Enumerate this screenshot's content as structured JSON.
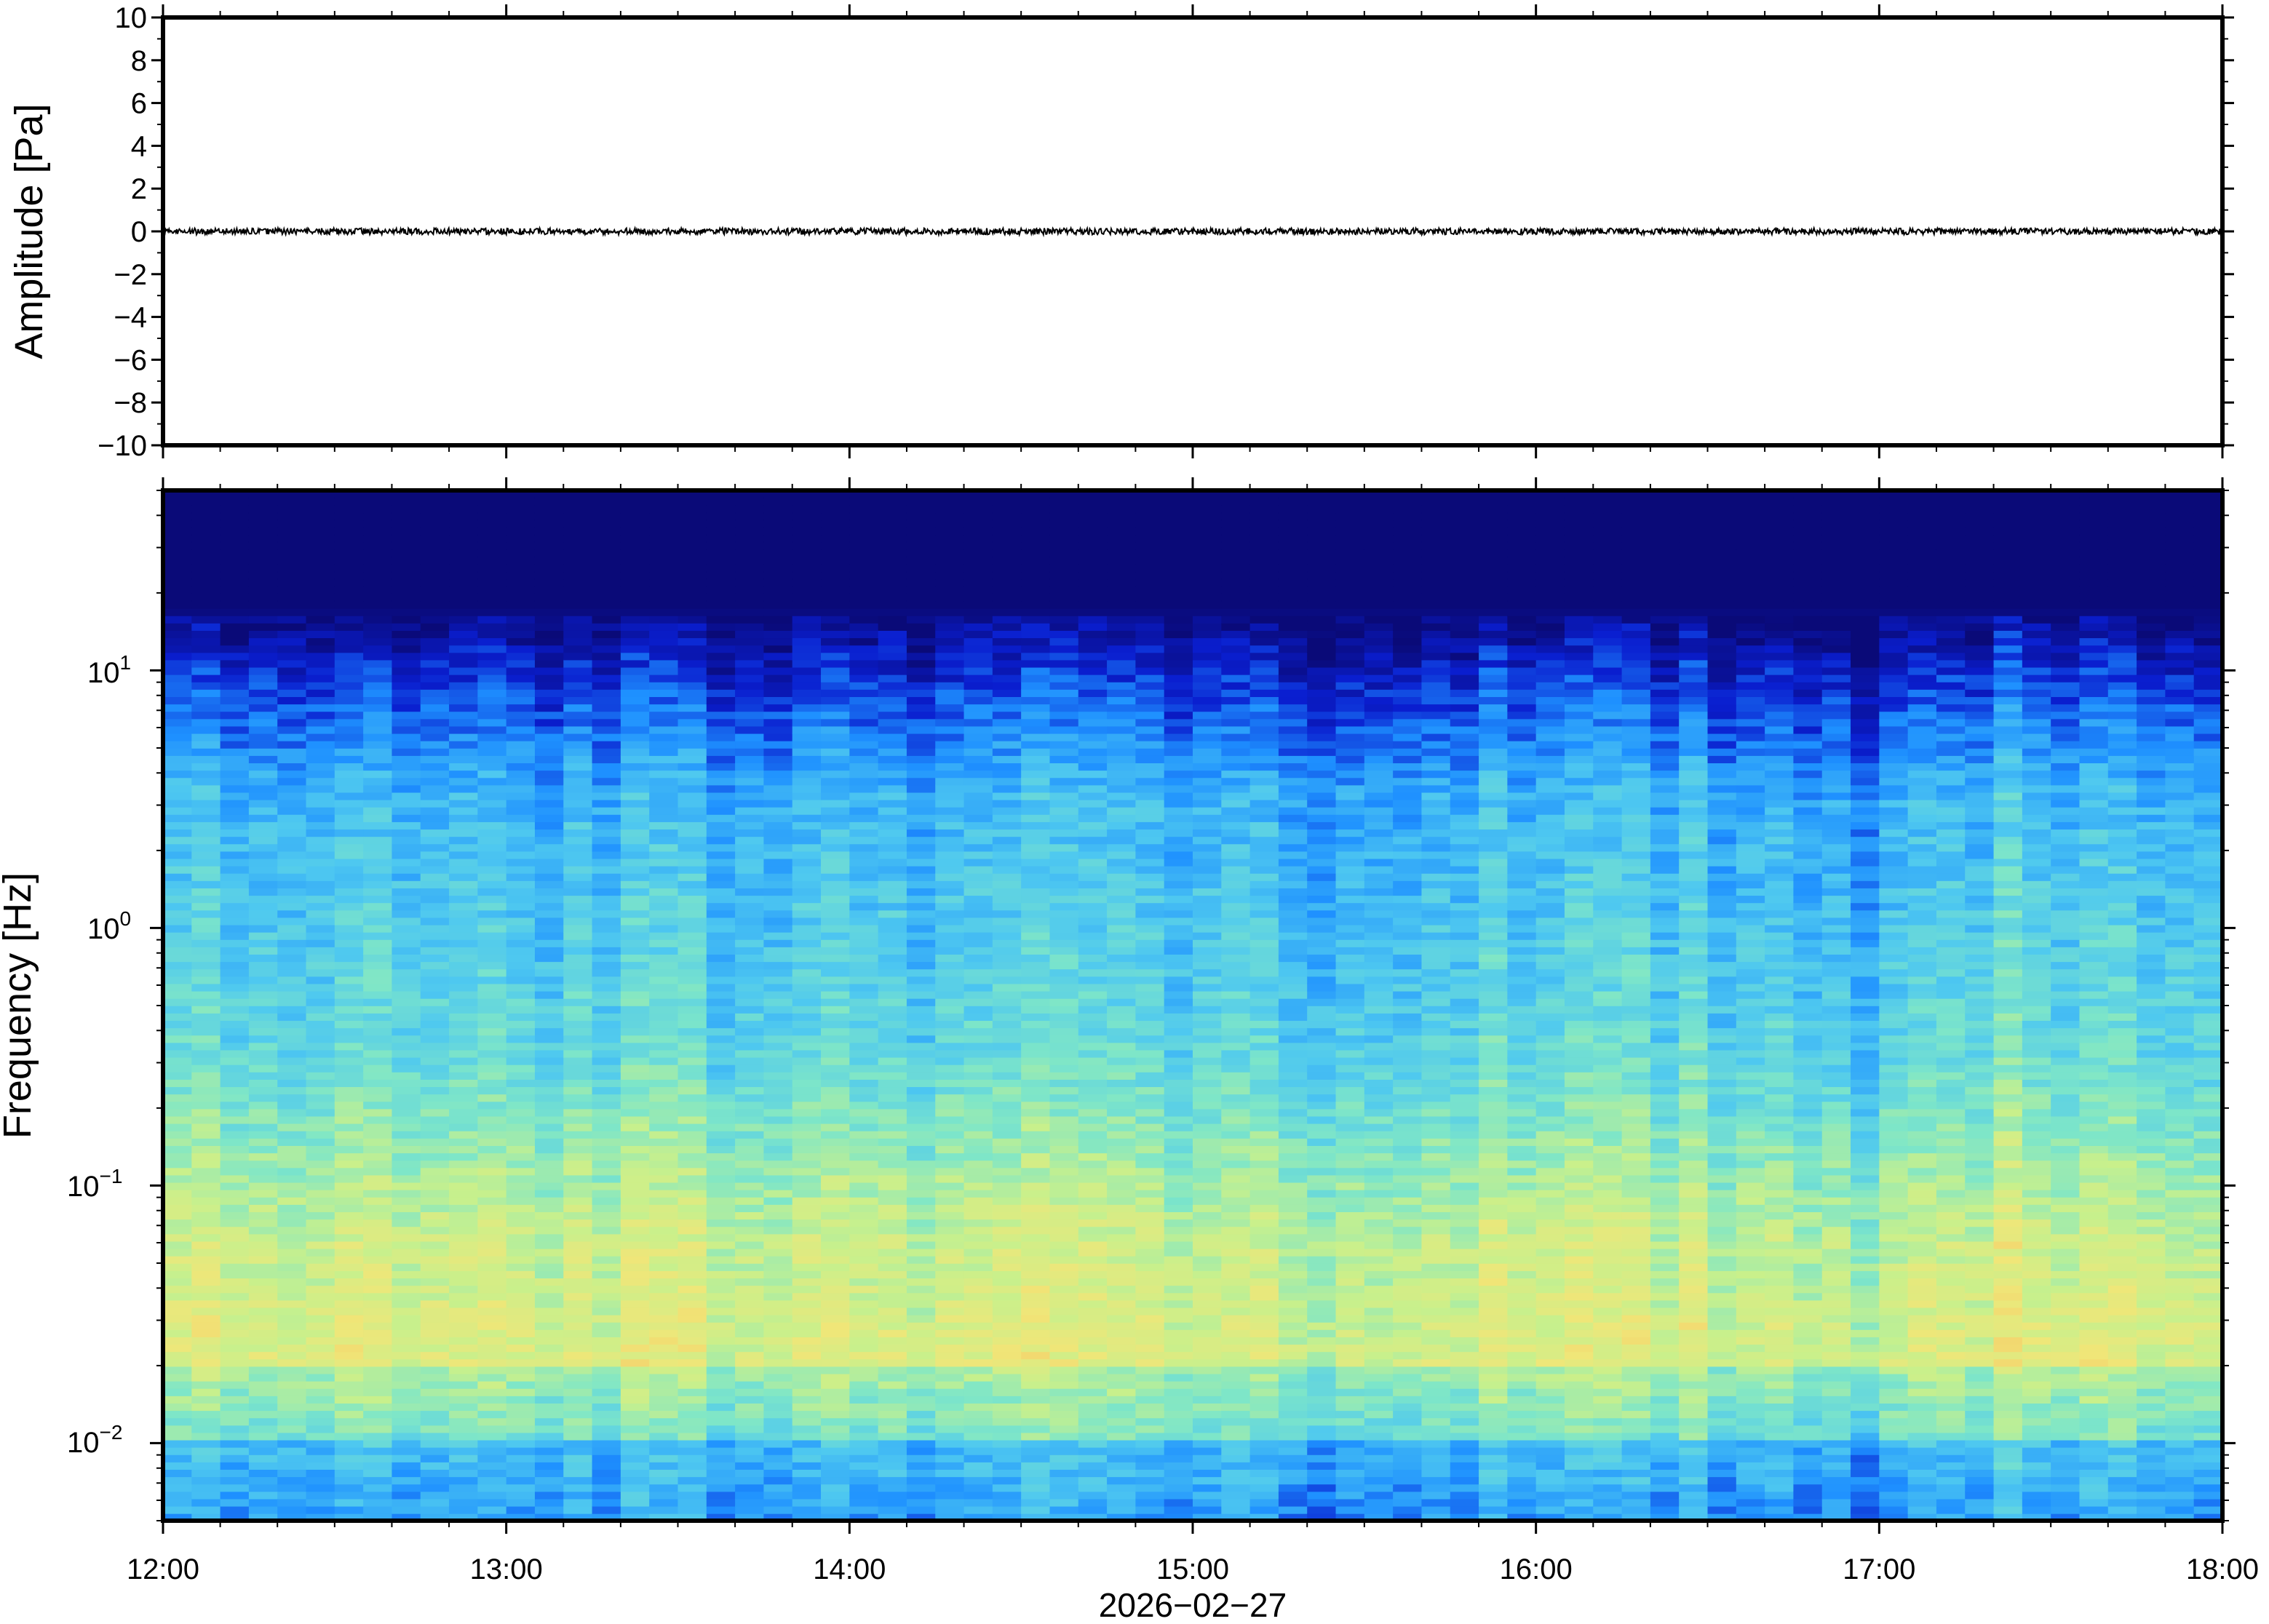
{
  "chart_data": [
    {
      "type": "line",
      "ylabel": "Amplitude [Pa]",
      "ylim": [
        -10,
        10
      ],
      "yticks": [
        10,
        8,
        6,
        4,
        2,
        0,
        -2,
        -4,
        -6,
        -8,
        -10
      ],
      "ytick_labels": [
        "10",
        "8",
        "6",
        "4",
        "2",
        "0",
        "−2",
        "−4",
        "−6",
        "−8",
        "−10"
      ],
      "series": [
        {
          "color": "#000000",
          "baseline": 0,
          "noise_amplitude": 0.15
        }
      ],
      "xlim": [
        "12:00",
        "18:00"
      ]
    },
    {
      "type": "heatmap",
      "ylabel": "Frequency [Hz]",
      "yscale": "log",
      "ylim": [
        0.005,
        50
      ],
      "yticks": [
        {
          "base": "10",
          "exp": "1",
          "value": 10
        },
        {
          "base": "10",
          "exp": "0",
          "value": 1
        },
        {
          "base": "10",
          "exp": "−1",
          "value": 0.1
        },
        {
          "base": "10",
          "exp": "−2",
          "value": 0.01
        }
      ],
      "xlim": [
        "12:00",
        "18:00"
      ],
      "xticks": [
        "12:00",
        "13:00",
        "14:00",
        "15:00",
        "16:00",
        "17:00",
        "18:00"
      ],
      "xlabel": "2026−02−27",
      "colormap": [
        "#0a0a78",
        "#0a1ecf",
        "#1e90ff",
        "#4ec8f0",
        "#7ee6c8",
        "#c8f08c",
        "#f0e678",
        "#f8b45a"
      ],
      "time_columns": 72
    }
  ]
}
